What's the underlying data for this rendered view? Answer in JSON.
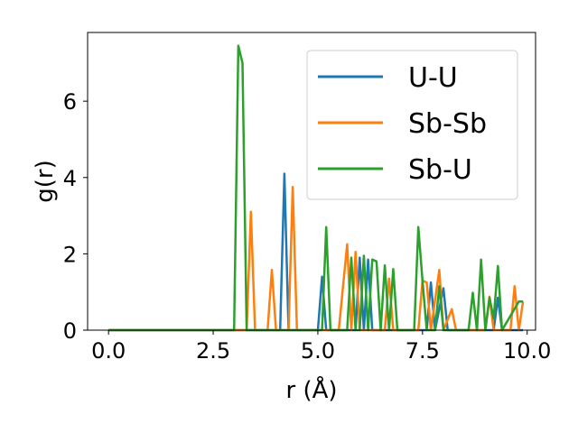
{
  "chart_data": {
    "type": "line",
    "xlabel": "r (Å)",
    "ylabel": "g(r)",
    "xlim": [
      -0.5,
      10.2
    ],
    "ylim": [
      0,
      7.8
    ],
    "xticks": [
      0.0,
      2.5,
      5.0,
      7.5,
      10.0
    ],
    "xtick_labels": [
      "0.0",
      "2.5",
      "5.0",
      "7.5",
      "10.0"
    ],
    "yticks": [
      0,
      2,
      4,
      6
    ],
    "ytick_labels": [
      "0",
      "2",
      "4",
      "6"
    ],
    "grid": false,
    "legend": "upper right",
    "series": [
      {
        "name": "U-U",
        "color": "#1f77b4",
        "points": [
          [
            0.0,
            0
          ],
          [
            3.0,
            0
          ],
          [
            4.1,
            0
          ],
          [
            4.2,
            4.1
          ],
          [
            4.3,
            0
          ],
          [
            5.0,
            0
          ],
          [
            5.1,
            1.4
          ],
          [
            5.2,
            0
          ],
          [
            5.9,
            0
          ],
          [
            6.0,
            1.9
          ],
          [
            6.1,
            0
          ],
          [
            6.2,
            1.85
          ],
          [
            6.3,
            0
          ],
          [
            7.6,
            0
          ],
          [
            7.7,
            1.25
          ],
          [
            7.8,
            0
          ],
          [
            8.0,
            1.1
          ],
          [
            8.1,
            0
          ],
          [
            9.2,
            0
          ],
          [
            9.3,
            0.85
          ],
          [
            9.4,
            0
          ],
          [
            9.9,
            0
          ]
        ]
      },
      {
        "name": "Sb-Sb",
        "color": "#ff7f0e",
        "points": [
          [
            0.0,
            0
          ],
          [
            3.3,
            0
          ],
          [
            3.4,
            3.1
          ],
          [
            3.5,
            0
          ],
          [
            3.8,
            0
          ],
          [
            3.9,
            1.58
          ],
          [
            4.0,
            0
          ],
          [
            4.3,
            0
          ],
          [
            4.4,
            3.75
          ],
          [
            4.5,
            0
          ],
          [
            5.5,
            0
          ],
          [
            5.7,
            2.25
          ],
          [
            5.8,
            0
          ],
          [
            5.9,
            2.05
          ],
          [
            6.0,
            0
          ],
          [
            6.6,
            0
          ],
          [
            6.7,
            1.35
          ],
          [
            6.8,
            0
          ],
          [
            7.4,
            0
          ],
          [
            7.5,
            1.3
          ],
          [
            7.6,
            1.25
          ],
          [
            7.7,
            0
          ],
          [
            7.9,
            1.58
          ],
          [
            8.0,
            0
          ],
          [
            8.2,
            0.55
          ],
          [
            8.3,
            0
          ],
          [
            9.0,
            0
          ],
          [
            9.1,
            0.88
          ],
          [
            9.2,
            0
          ],
          [
            9.6,
            0
          ],
          [
            9.7,
            1.15
          ],
          [
            9.8,
            0
          ],
          [
            9.9,
            0.75
          ]
        ]
      },
      {
        "name": "Sb-U",
        "color": "#2ca02c",
        "points": [
          [
            0.0,
            0
          ],
          [
            3.0,
            0
          ],
          [
            3.1,
            7.45
          ],
          [
            3.2,
            7.0
          ],
          [
            3.3,
            0
          ],
          [
            5.1,
            0
          ],
          [
            5.2,
            2.7
          ],
          [
            5.3,
            0
          ],
          [
            5.7,
            0
          ],
          [
            5.8,
            1.9
          ],
          [
            5.9,
            0
          ],
          [
            6.0,
            0
          ],
          [
            6.1,
            1.95
          ],
          [
            6.2,
            0
          ],
          [
            6.3,
            1.85
          ],
          [
            6.4,
            1.8
          ],
          [
            6.5,
            0
          ],
          [
            6.6,
            1.7
          ],
          [
            6.7,
            0
          ],
          [
            6.8,
            1.6
          ],
          [
            6.9,
            0
          ],
          [
            7.3,
            0
          ],
          [
            7.4,
            2.7
          ],
          [
            7.5,
            1.3
          ],
          [
            7.6,
            0
          ],
          [
            7.8,
            0
          ],
          [
            7.9,
            1.15
          ],
          [
            8.0,
            0
          ],
          [
            8.6,
            0
          ],
          [
            8.7,
            0.98
          ],
          [
            8.8,
            0
          ],
          [
            8.9,
            1.85
          ],
          [
            9.0,
            0
          ],
          [
            9.1,
            0.85
          ],
          [
            9.2,
            0.3
          ],
          [
            9.3,
            1.68
          ],
          [
            9.4,
            0
          ],
          [
            9.8,
            0.75
          ],
          [
            9.9,
            0.75
          ]
        ]
      }
    ]
  }
}
